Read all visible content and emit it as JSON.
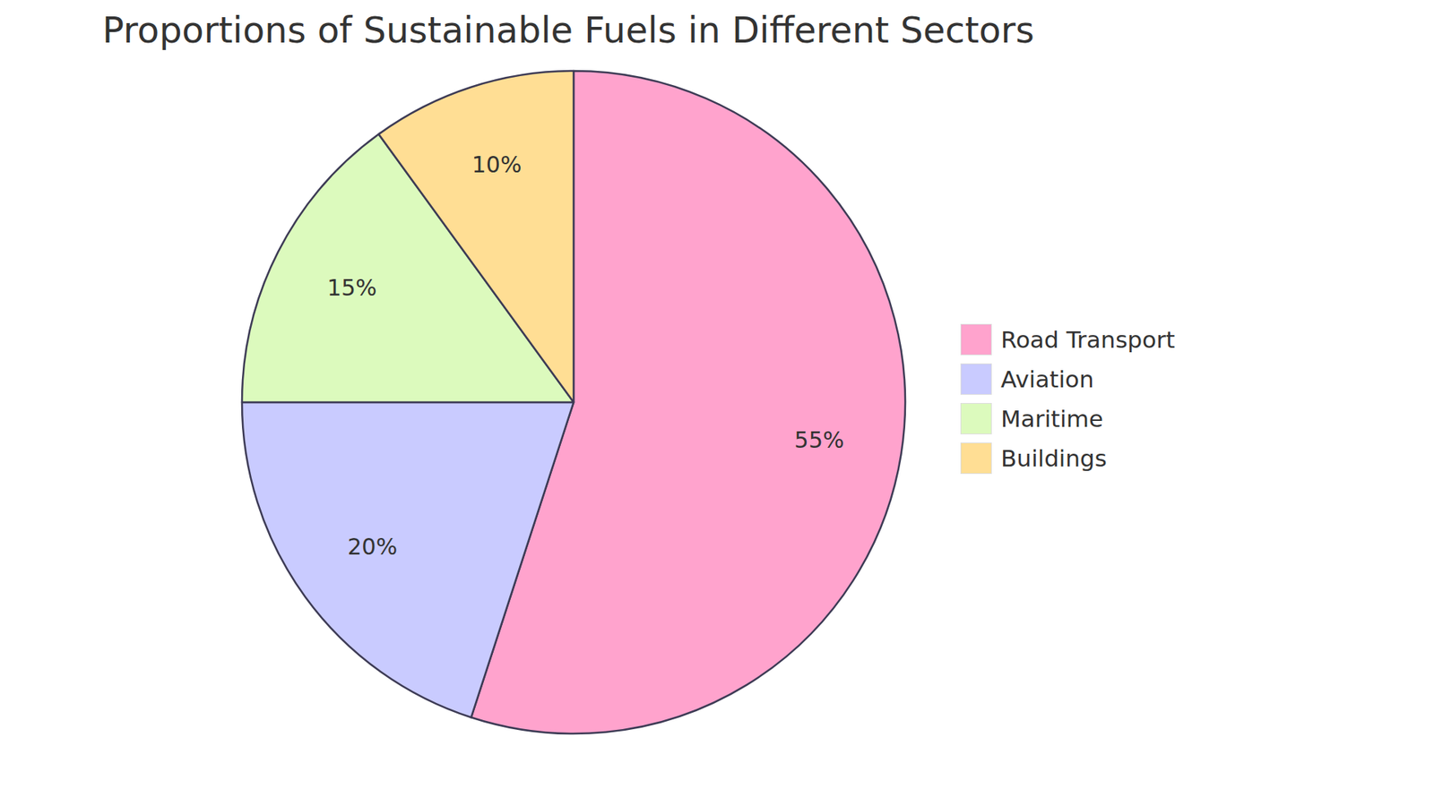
{
  "chart_data": {
    "type": "pie",
    "title": "Proportions of Sustainable Fuels in Different Sectors",
    "categories": [
      "Road Transport",
      "Aviation",
      "Maritime",
      "Buildings"
    ],
    "values": [
      55,
      20,
      15,
      10
    ],
    "value_labels": [
      "55%",
      "20%",
      "15%",
      "10%"
    ],
    "colors": [
      "#ffa3cd",
      "#c9cbff",
      "#dcfabd",
      "#ffde94"
    ],
    "data_labels": true,
    "legend": "right"
  }
}
